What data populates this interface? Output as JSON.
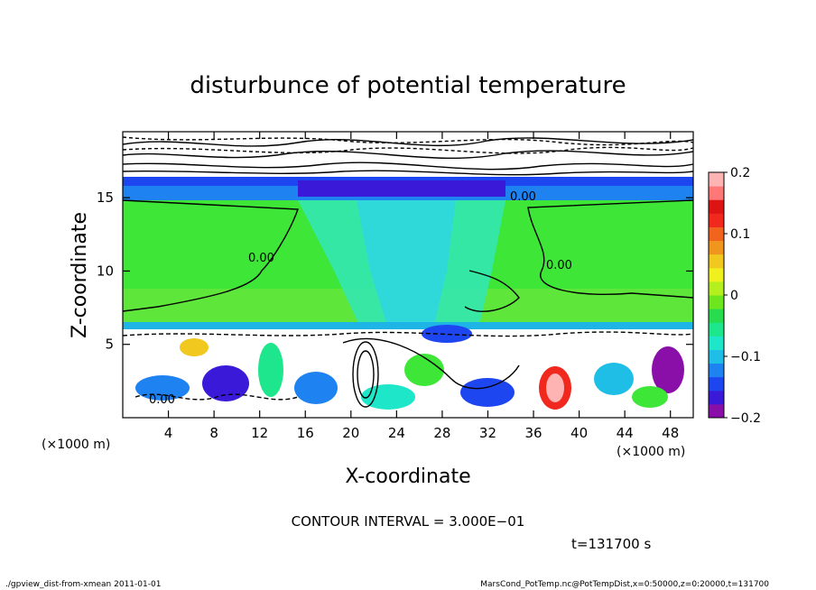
{
  "chart_data": {
    "type": "heatmap",
    "title": "disturbunce of potential temperature",
    "xlabel": "X-coordinate",
    "ylabel": "Z-coordinate",
    "x_unit_left": "(×1000 m)",
    "x_unit_right": "(×1000 m)",
    "y_unit": "(×1000 m)",
    "xlim": [
      0,
      50
    ],
    "ylim": [
      0,
      19.5
    ],
    "x_ticks": [
      "4",
      "8",
      "12",
      "16",
      "20",
      "24",
      "28",
      "32",
      "36",
      "40",
      "44",
      "48"
    ],
    "y_ticks": [
      "5",
      "10",
      "15"
    ],
    "colorbar": {
      "range": [
        -0.2,
        0.2
      ],
      "tick_labels": [
        "0.2",
        "0.1",
        "0",
        "−0.1",
        "−0.2"
      ],
      "colors": [
        "#8a0fa8",
        "#3a1ad8",
        "#1e46f0",
        "#1e82f0",
        "#1ebee6",
        "#1ee6c8",
        "#1ee68c",
        "#28dc50",
        "#6ee61e",
        "#b4f01e",
        "#f0f01e",
        "#f0c81e",
        "#f0961e",
        "#f0641e",
        "#f0281e",
        "#dc1414",
        "#ff7878",
        "#ffb4b4"
      ]
    },
    "contour_labels": [
      "0.00",
      "0.00",
      "0.00",
      "0.00"
    ],
    "contour_interval_text": "CONTOUR INTERVAL = 3.000E−01",
    "time_text": "t=131700 s"
  },
  "footer": {
    "left": "./gpview_dist-from-xmean  2011-01-01",
    "right": "MarsCond_PotTemp.nc@PotTempDist,x=0:50000,z=0:20000,t=131700"
  }
}
